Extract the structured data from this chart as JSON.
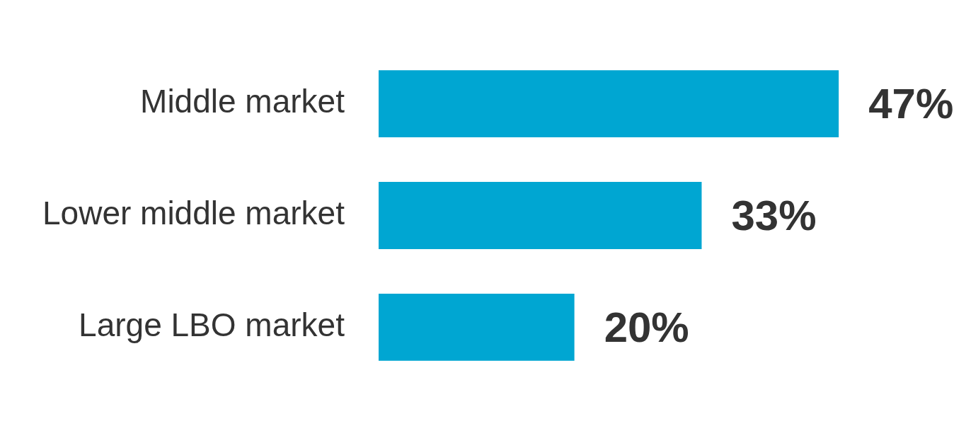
{
  "chart_data": {
    "type": "bar",
    "orientation": "horizontal",
    "categories": [
      "Middle market",
      "Lower middle market",
      "Large LBO market"
    ],
    "values": [
      47,
      33,
      20
    ],
    "color": "#00a6d2",
    "value_labels": [
      "47%",
      "33%",
      "20%"
    ]
  }
}
